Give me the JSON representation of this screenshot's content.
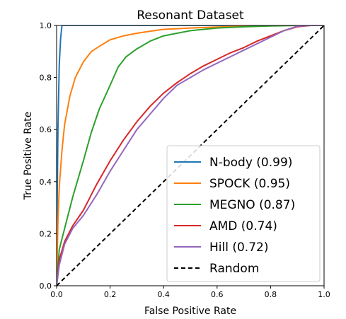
{
  "chart_data": {
    "type": "line",
    "title": "Resonant Dataset",
    "xlabel": "False Positive Rate",
    "ylabel": "True Positive Rate",
    "xlim": [
      0,
      1
    ],
    "ylim": [
      0,
      1
    ],
    "xticks": [
      "0.0",
      "0.2",
      "0.4",
      "0.6",
      "0.8",
      "1.0"
    ],
    "yticks": [
      "0.0",
      "0.2",
      "0.4",
      "0.6",
      "0.8",
      "1.0"
    ],
    "grid": false,
    "legend_position": "lower-right",
    "series": [
      {
        "name": "N-body (0.99)",
        "color": "#1f77b4",
        "x": [
          0,
          0.002,
          0.005,
          0.01,
          0.015,
          0.02,
          0.03,
          0.2,
          0.5,
          1.0
        ],
        "y": [
          0,
          0.3,
          0.6,
          0.85,
          0.95,
          1.0,
          1.0,
          1.0,
          1.0,
          1.0
        ]
      },
      {
        "name": "SPOCK (0.95)",
        "color": "#ff7f0e",
        "x": [
          0,
          0.005,
          0.01,
          0.02,
          0.03,
          0.05,
          0.07,
          0.1,
          0.13,
          0.16,
          0.2,
          0.25,
          0.3,
          0.35,
          0.4,
          0.5,
          0.6,
          0.7,
          0.8,
          0.9,
          1.0
        ],
        "y": [
          0,
          0.25,
          0.38,
          0.52,
          0.62,
          0.73,
          0.8,
          0.86,
          0.9,
          0.92,
          0.945,
          0.96,
          0.97,
          0.978,
          0.985,
          0.99,
          0.994,
          0.997,
          0.999,
          1.0,
          1.0
        ]
      },
      {
        "name": "MEGNO (0.87)",
        "color": "#2ca02c",
        "x": [
          0,
          0.01,
          0.03,
          0.06,
          0.1,
          0.13,
          0.16,
          0.2,
          0.23,
          0.26,
          0.3,
          0.35,
          0.4,
          0.45,
          0.5,
          0.6,
          0.7,
          0.8,
          0.9,
          1.0
        ],
        "y": [
          0,
          0.14,
          0.22,
          0.34,
          0.48,
          0.59,
          0.68,
          0.77,
          0.84,
          0.88,
          0.91,
          0.94,
          0.96,
          0.97,
          0.98,
          0.99,
          0.995,
          0.998,
          1.0,
          1.0
        ]
      },
      {
        "name": "AMD (0.74)",
        "color": "#d62728",
        "x": [
          0,
          0.01,
          0.03,
          0.06,
          0.1,
          0.15,
          0.2,
          0.25,
          0.3,
          0.35,
          0.4,
          0.45,
          0.5,
          0.55,
          0.6,
          0.65,
          0.7,
          0.75,
          0.8,
          0.85,
          0.9,
          0.95,
          1.0
        ],
        "y": [
          0,
          0.1,
          0.17,
          0.23,
          0.29,
          0.39,
          0.48,
          0.56,
          0.63,
          0.69,
          0.74,
          0.78,
          0.815,
          0.845,
          0.87,
          0.895,
          0.915,
          0.94,
          0.96,
          0.98,
          0.995,
          1.0,
          1.0
        ]
      },
      {
        "name": "Hill (0.72)",
        "color": "#9467bd",
        "x": [
          0,
          0.01,
          0.03,
          0.06,
          0.1,
          0.15,
          0.2,
          0.25,
          0.3,
          0.35,
          0.4,
          0.45,
          0.5,
          0.55,
          0.6,
          0.65,
          0.7,
          0.75,
          0.8,
          0.85,
          0.9,
          0.95,
          1.0
        ],
        "y": [
          0,
          0.08,
          0.16,
          0.22,
          0.27,
          0.35,
          0.44,
          0.52,
          0.6,
          0.66,
          0.72,
          0.77,
          0.8,
          0.83,
          0.855,
          0.88,
          0.905,
          0.93,
          0.955,
          0.98,
          0.997,
          1.0,
          1.0
        ]
      },
      {
        "name": "Random",
        "color": "#000000",
        "dashed": true,
        "x": [
          0,
          1
        ],
        "y": [
          0,
          1
        ]
      }
    ]
  }
}
